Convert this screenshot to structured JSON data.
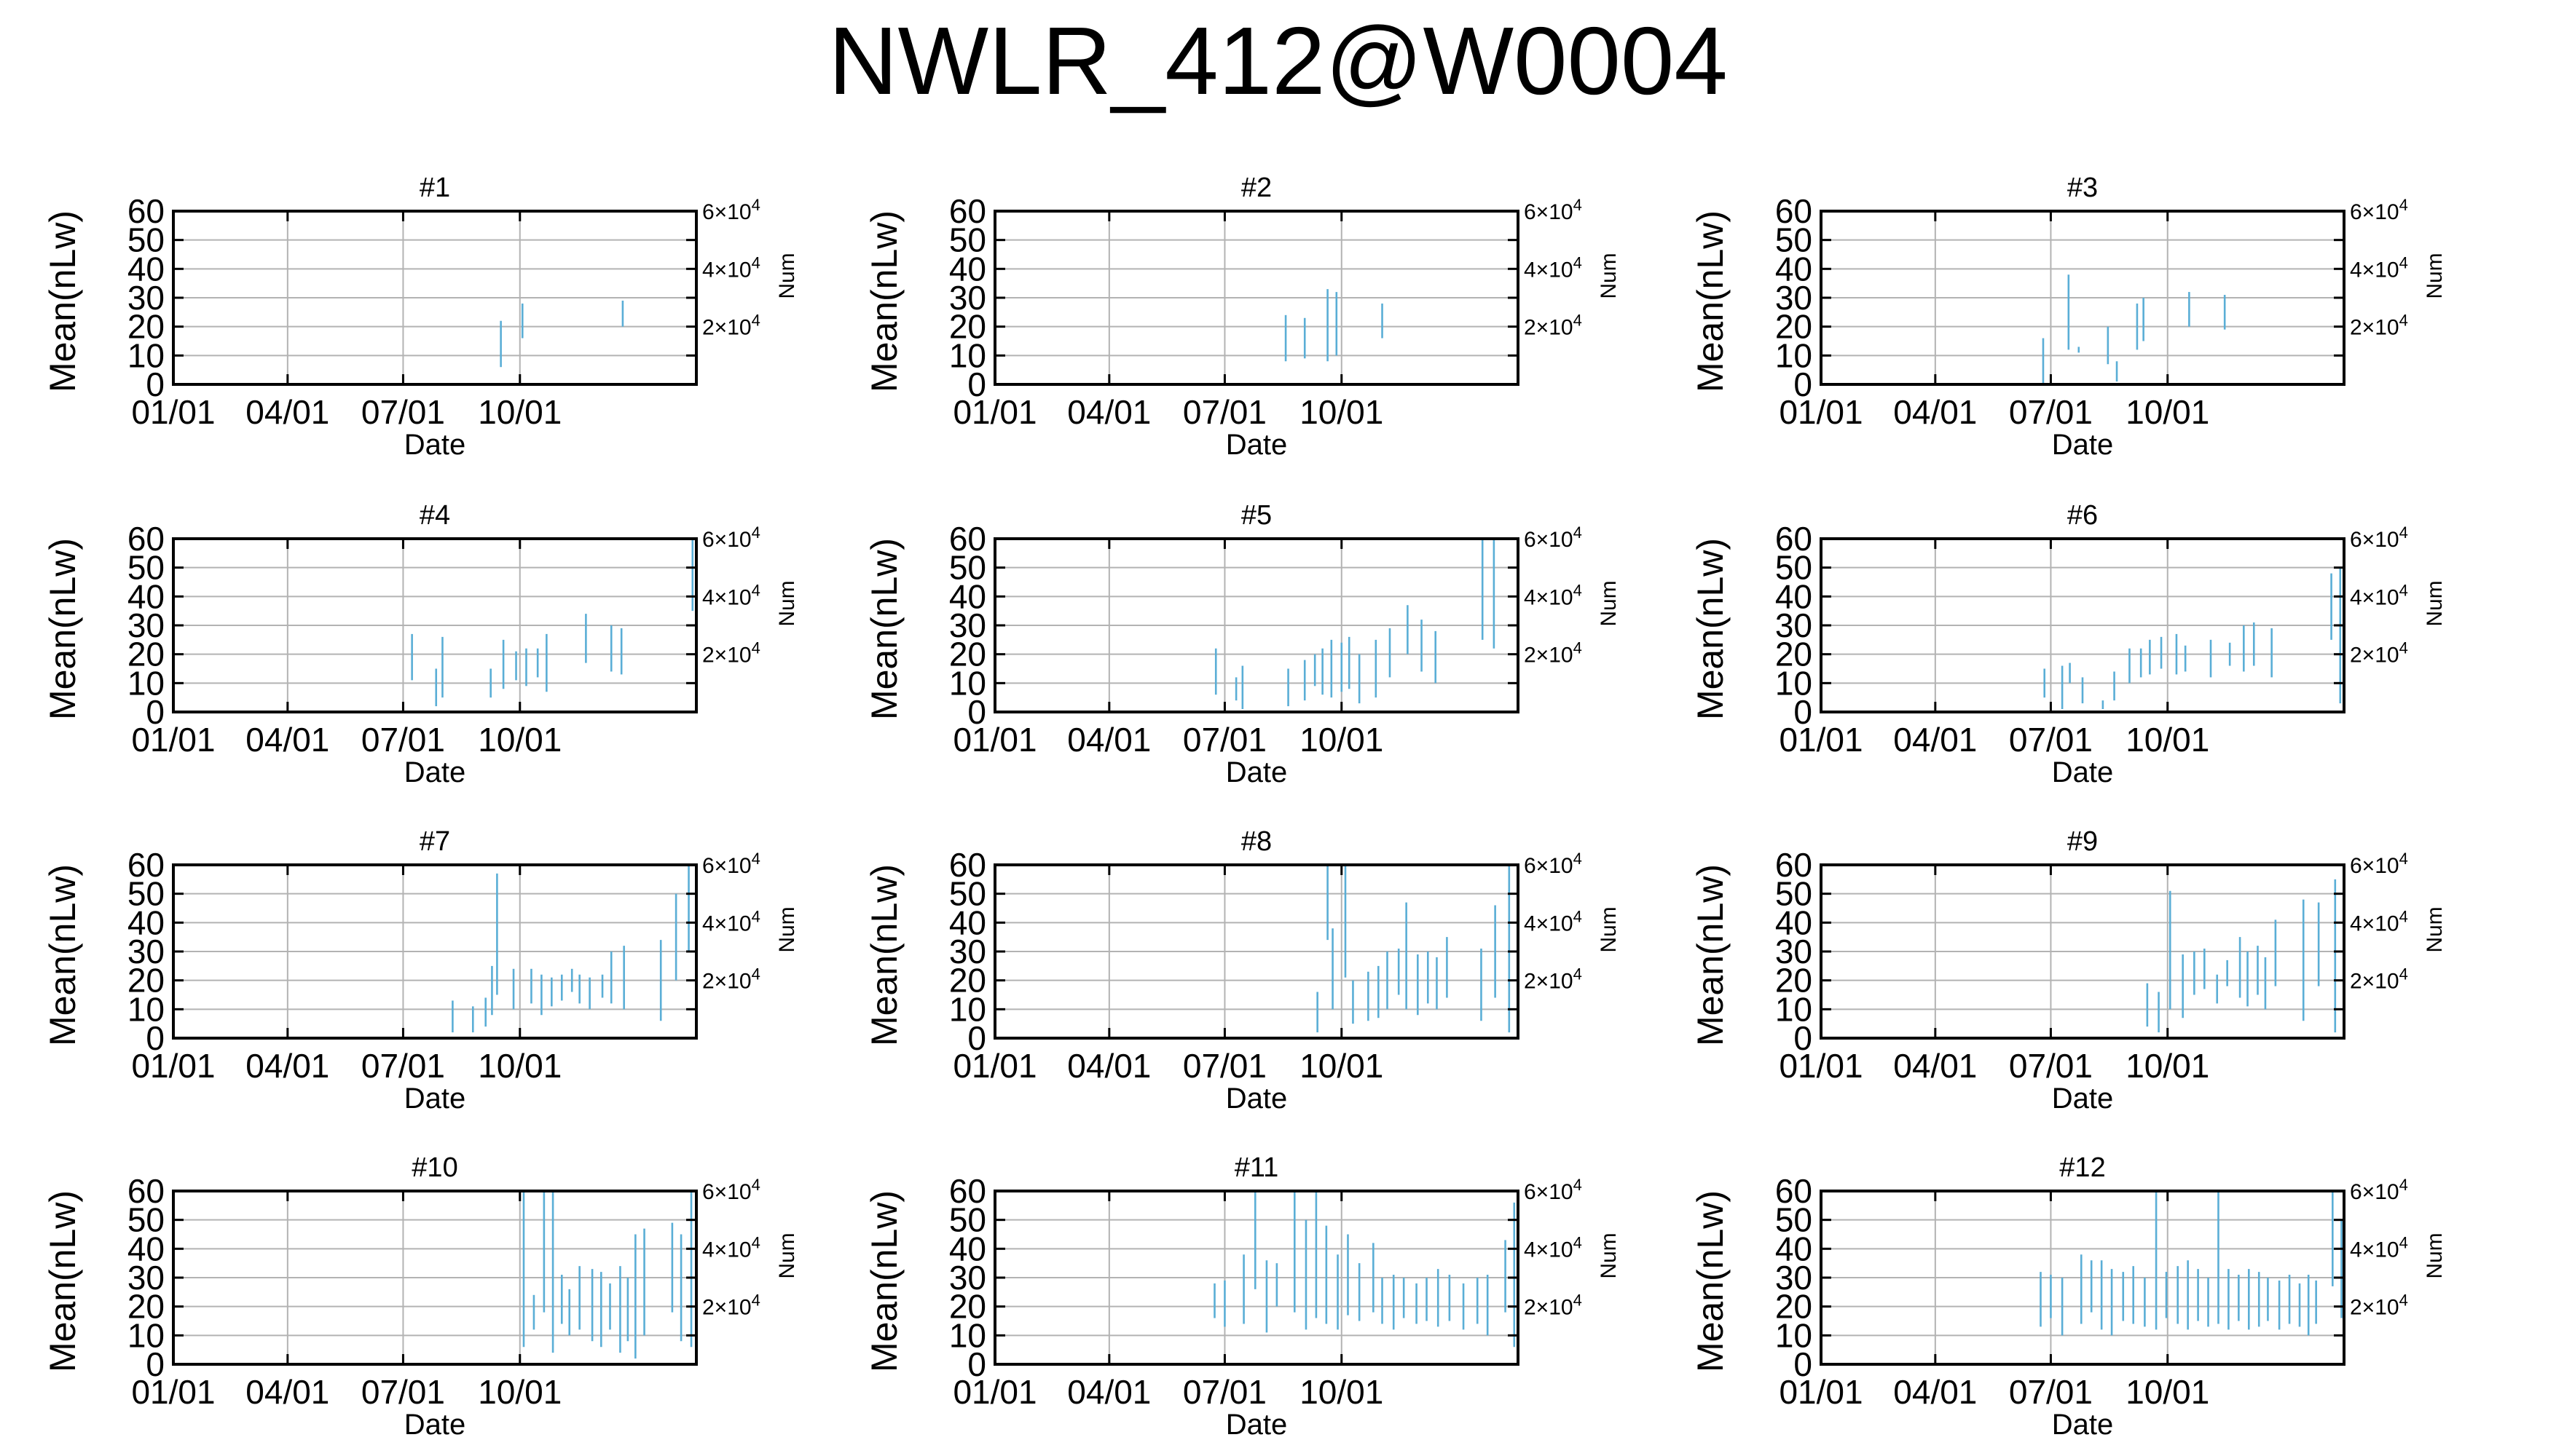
{
  "title": "NWLR_412@W0004",
  "axes": {
    "xlabel": "Date",
    "ylabel": "Mean(nLw)",
    "y2label": "Num",
    "xticks": [
      "01/01",
      "04/01",
      "07/01",
      "10/01"
    ],
    "yticks": [
      "0",
      "10",
      "20",
      "30",
      "40",
      "50",
      "60"
    ],
    "y2ticks": [
      {
        "mantissa": "2",
        "exp": "4"
      },
      {
        "mantissa": "4",
        "exp": "4"
      },
      {
        "mantissa": "6",
        "exp": "4"
      }
    ]
  },
  "colors": {
    "series": "#5aaed6",
    "grid": "#b3b3b3",
    "axis": "#000000"
  },
  "chart_data": [
    {
      "type": "line",
      "title": "#1",
      "xlabel": "Date",
      "ylabel": "Mean(nLw)",
      "y2label": "Num",
      "xlim": [
        0,
        412
      ],
      "ylim": [
        0,
        60
      ],
      "y2lim": [
        0,
        60000
      ],
      "grid": true,
      "segments": [
        [
          258,
          6,
          22
        ],
        [
          275,
          16,
          28
        ],
        [
          354,
          20,
          29
        ]
      ]
    },
    {
      "type": "line",
      "title": "#2",
      "xlabel": "Date",
      "ylabel": "Mean(nLw)",
      "y2label": "Num",
      "xlim": [
        0,
        412
      ],
      "ylim": [
        0,
        60
      ],
      "y2lim": [
        0,
        60000
      ],
      "grid": true,
      "segments": [
        [
          229,
          8,
          24
        ],
        [
          244,
          9,
          23
        ],
        [
          262,
          8,
          33
        ],
        [
          269,
          10,
          32
        ],
        [
          305,
          16,
          28
        ]
      ]
    },
    {
      "type": "line",
      "title": "#3",
      "xlabel": "Date",
      "ylabel": "Mean(nLw)",
      "y2label": "Num",
      "xlim": [
        0,
        412
      ],
      "ylim": [
        0,
        60
      ],
      "y2lim": [
        0,
        60000
      ],
      "grid": true,
      "segments": [
        [
          175,
          0,
          16
        ],
        [
          195,
          12,
          38
        ],
        [
          203,
          11,
          13
        ],
        [
          226,
          7,
          20
        ],
        [
          233,
          1,
          8
        ],
        [
          249,
          12,
          28
        ],
        [
          254,
          15,
          30
        ],
        [
          290,
          20,
          32
        ],
        [
          318,
          19,
          31
        ]
      ]
    },
    {
      "type": "line",
      "title": "#4",
      "xlabel": "Date",
      "ylabel": "Mean(nLw)",
      "y2label": "Num",
      "xlim": [
        0,
        412
      ],
      "ylim": [
        0,
        60
      ],
      "y2lim": [
        0,
        60000
      ],
      "grid": true,
      "segments": [
        [
          188,
          11,
          27
        ],
        [
          207,
          2,
          15
        ],
        [
          212,
          5,
          26
        ],
        [
          250,
          5,
          15
        ],
        [
          260,
          8,
          25
        ],
        [
          270,
          11,
          21
        ],
        [
          278,
          9,
          22
        ],
        [
          287,
          12,
          22
        ],
        [
          294,
          7,
          27
        ],
        [
          325,
          17,
          34
        ],
        [
          345,
          14,
          30
        ],
        [
          353,
          13,
          29
        ],
        [
          409,
          35,
          60
        ]
      ]
    },
    {
      "type": "line",
      "title": "#5",
      "xlabel": "Date",
      "ylabel": "Mean(nLw)",
      "y2label": "Num",
      "xlim": [
        0,
        412
      ],
      "ylim": [
        0,
        60
      ],
      "y2lim": [
        0,
        60000
      ],
      "grid": true,
      "segments": [
        [
          174,
          6,
          22
        ],
        [
          190,
          4,
          12
        ],
        [
          195,
          1,
          16
        ],
        [
          231,
          2,
          15
        ],
        [
          244,
          4,
          18
        ],
        [
          252,
          9,
          20
        ],
        [
          258,
          6,
          22
        ],
        [
          265,
          5,
          25
        ],
        [
          273,
          7,
          24
        ],
        [
          279,
          8,
          26
        ],
        [
          287,
          3,
          20
        ],
        [
          300,
          5,
          25
        ],
        [
          311,
          12,
          29
        ],
        [
          325,
          20,
          37
        ],
        [
          336,
          14,
          32
        ],
        [
          347,
          10,
          28
        ],
        [
          384,
          25,
          60
        ],
        [
          393,
          22,
          60
        ]
      ]
    },
    {
      "type": "line",
      "title": "#6",
      "xlabel": "Date",
      "ylabel": "Mean(nLw)",
      "y2label": "Num",
      "xlim": [
        0,
        412
      ],
      "ylim": [
        0,
        60
      ],
      "y2lim": [
        0,
        60000
      ],
      "grid": true,
      "segments": [
        [
          176,
          5,
          15
        ],
        [
          190,
          1,
          16
        ],
        [
          196,
          10,
          17
        ],
        [
          206,
          3,
          12
        ],
        [
          222,
          1,
          4
        ],
        [
          231,
          4,
          14
        ],
        [
          243,
          10,
          22
        ],
        [
          252,
          12,
          22
        ],
        [
          259,
          13,
          25
        ],
        [
          268,
          15,
          26
        ],
        [
          280,
          13,
          27
        ],
        [
          287,
          14,
          23
        ],
        [
          307,
          12,
          25
        ],
        [
          322,
          16,
          24
        ],
        [
          333,
          14,
          30
        ],
        [
          341,
          16,
          31
        ],
        [
          355,
          12,
          29
        ],
        [
          402,
          25,
          48
        ],
        [
          409,
          3,
          50
        ]
      ]
    },
    {
      "type": "line",
      "title": "#7",
      "xlabel": "Date",
      "ylabel": "Mean(nLw)",
      "y2label": "Num",
      "xlim": [
        0,
        412
      ],
      "ylim": [
        0,
        60
      ],
      "y2lim": [
        0,
        60000
      ],
      "grid": true,
      "segments": [
        [
          220,
          2,
          13
        ],
        [
          236,
          2,
          11
        ],
        [
          246,
          4,
          14
        ],
        [
          251,
          8,
          25
        ],
        [
          255,
          15,
          57
        ],
        [
          268,
          10,
          24
        ],
        [
          282,
          12,
          24
        ],
        [
          290,
          8,
          22
        ],
        [
          298,
          11,
          21
        ],
        [
          306,
          13,
          22
        ],
        [
          314,
          16,
          24
        ],
        [
          320,
          12,
          22
        ],
        [
          328,
          10,
          21
        ],
        [
          338,
          14,
          22
        ],
        [
          345,
          12,
          30
        ],
        [
          355,
          10,
          32
        ],
        [
          384,
          6,
          34
        ],
        [
          396,
          20,
          50
        ],
        [
          406,
          30,
          60
        ]
      ]
    },
    {
      "type": "line",
      "title": "#8",
      "xlabel": "Date",
      "ylabel": "Mean(nLw)",
      "y2label": "Num",
      "xlim": [
        0,
        412
      ],
      "ylim": [
        0,
        60
      ],
      "y2lim": [
        0,
        60000
      ],
      "grid": true,
      "segments": [
        [
          254,
          2,
          16
        ],
        [
          262,
          34,
          60
        ],
        [
          266,
          10,
          38
        ],
        [
          276,
          21,
          60
        ],
        [
          282,
          5,
          20
        ],
        [
          294,
          6,
          23
        ],
        [
          302,
          7,
          25
        ],
        [
          309,
          10,
          30
        ],
        [
          318,
          15,
          31
        ],
        [
          324,
          10,
          47
        ],
        [
          333,
          8,
          29
        ],
        [
          341,
          12,
          30
        ],
        [
          348,
          10,
          28
        ],
        [
          356,
          14,
          35
        ],
        [
          383,
          6,
          31
        ],
        [
          394,
          14,
          46
        ],
        [
          405,
          2,
          60
        ]
      ]
    },
    {
      "type": "line",
      "title": "#9",
      "xlabel": "Date",
      "ylabel": "Mean(nLw)",
      "y2label": "Num",
      "xlim": [
        0,
        412
      ],
      "ylim": [
        0,
        60
      ],
      "y2lim": [
        0,
        60000
      ],
      "grid": true,
      "segments": [
        [
          257,
          4,
          19
        ],
        [
          266,
          2,
          16
        ],
        [
          275,
          10,
          51
        ],
        [
          285,
          7,
          29
        ],
        [
          294,
          15,
          30
        ],
        [
          302,
          17,
          31
        ],
        [
          312,
          12,
          22
        ],
        [
          320,
          18,
          27
        ],
        [
          330,
          14,
          35
        ],
        [
          336,
          11,
          30
        ],
        [
          344,
          15,
          32
        ],
        [
          350,
          10,
          28
        ],
        [
          358,
          18,
          41
        ],
        [
          380,
          6,
          48
        ],
        [
          392,
          18,
          47
        ],
        [
          405,
          2,
          55
        ]
      ]
    },
    {
      "type": "line",
      "title": "#10",
      "xlabel": "Date",
      "ylabel": "Mean(nLw)",
      "y2label": "Num",
      "xlim": [
        0,
        412
      ],
      "ylim": [
        0,
        60
      ],
      "y2lim": [
        0,
        60000
      ],
      "grid": true,
      "segments": [
        [
          276,
          6,
          60
        ],
        [
          284,
          12,
          24
        ],
        [
          292,
          18,
          60
        ],
        [
          299,
          4,
          60
        ],
        [
          306,
          14,
          31
        ],
        [
          312,
          10,
          26
        ],
        [
          320,
          12,
          34
        ],
        [
          330,
          8,
          33
        ],
        [
          337,
          6,
          32
        ],
        [
          344,
          12,
          28
        ],
        [
          352,
          4,
          34
        ],
        [
          358,
          8,
          30
        ],
        [
          364,
          2,
          45
        ],
        [
          371,
          10,
          47
        ],
        [
          393,
          18,
          49
        ],
        [
          400,
          8,
          45
        ],
        [
          408,
          6,
          60
        ]
      ]
    },
    {
      "type": "line",
      "title": "#11",
      "xlabel": "Date",
      "ylabel": "Mean(nLw)",
      "y2label": "Num",
      "xlim": [
        0,
        412
      ],
      "ylim": [
        0,
        60
      ],
      "y2lim": [
        0,
        60000
      ],
      "grid": true,
      "segments": [
        [
          173,
          16,
          28
        ],
        [
          181,
          13,
          29
        ],
        [
          196,
          14,
          38
        ],
        [
          205,
          26,
          60
        ],
        [
          214,
          11,
          36
        ],
        [
          222,
          20,
          35
        ],
        [
          236,
          18,
          60
        ],
        [
          245,
          12,
          50
        ],
        [
          253,
          16,
          60
        ],
        [
          261,
          14,
          48
        ],
        [
          270,
          12,
          38
        ],
        [
          278,
          17,
          45
        ],
        [
          287,
          15,
          35
        ],
        [
          298,
          18,
          42
        ],
        [
          305,
          14,
          30
        ],
        [
          314,
          12,
          31
        ],
        [
          322,
          16,
          30
        ],
        [
          332,
          14,
          28
        ],
        [
          340,
          15,
          30
        ],
        [
          349,
          13,
          33
        ],
        [
          358,
          15,
          31
        ],
        [
          369,
          12,
          28
        ],
        [
          380,
          14,
          30
        ],
        [
          388,
          10,
          31
        ],
        [
          402,
          18,
          43
        ],
        [
          409,
          6,
          56
        ]
      ]
    },
    {
      "type": "line",
      "title": "#12",
      "xlabel": "Date",
      "ylabel": "Mean(nLw)",
      "y2label": "Num",
      "xlim": [
        0,
        412
      ],
      "ylim": [
        0,
        60
      ],
      "y2lim": [
        0,
        60000
      ],
      "grid": true,
      "segments": [
        [
          173,
          13,
          32
        ],
        [
          181,
          16,
          31
        ],
        [
          190,
          10,
          30
        ],
        [
          205,
          14,
          38
        ],
        [
          213,
          18,
          36
        ],
        [
          221,
          12,
          36
        ],
        [
          229,
          10,
          33
        ],
        [
          238,
          15,
          32
        ],
        [
          246,
          14,
          34
        ],
        [
          255,
          13,
          30
        ],
        [
          264,
          12,
          60
        ],
        [
          272,
          16,
          32
        ],
        [
          281,
          14,
          34
        ],
        [
          289,
          12,
          36
        ],
        [
          297,
          15,
          33
        ],
        [
          305,
          13,
          30
        ],
        [
          313,
          14,
          60
        ],
        [
          321,
          12,
          33
        ],
        [
          329,
          15,
          31
        ],
        [
          337,
          12,
          33
        ],
        [
          345,
          13,
          32
        ],
        [
          352,
          15,
          30
        ],
        [
          361,
          12,
          29
        ],
        [
          369,
          14,
          31
        ],
        [
          377,
          13,
          28
        ],
        [
          384,
          10,
          31
        ],
        [
          390,
          14,
          29
        ],
        [
          403,
          27,
          60
        ],
        [
          410,
          16,
          50
        ]
      ]
    }
  ]
}
